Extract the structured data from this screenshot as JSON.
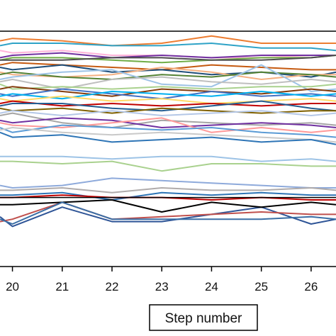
{
  "chart_data": {
    "type": "line",
    "title": "",
    "xlabel": "Step number",
    "ylabel": "",
    "x": [
      19.75,
      20,
      21,
      22,
      23,
      24,
      25,
      26,
      26.5
    ],
    "xlim": [
      19.75,
      26.5
    ],
    "ylim": [
      0,
      100
    ],
    "x_ticks": [
      "20",
      "21",
      "22",
      "23",
      "24",
      "25",
      "26"
    ],
    "x_tick_values": [
      20,
      21,
      22,
      23,
      24,
      25,
      26
    ],
    "reference_lines": [
      90,
      21
    ],
    "grid": false,
    "legend": "none",
    "series": [
      {
        "color": "#ed7d31",
        "values": [
          86,
          87,
          86,
          84,
          85,
          88,
          85,
          85,
          85
        ]
      },
      {
        "color": "#2fa3c7",
        "values": [
          84,
          85,
          85,
          84,
          84,
          85,
          83,
          83,
          82
        ]
      },
      {
        "color": "#ffb3d9",
        "values": [
          82,
          81,
          82,
          80,
          80,
          79,
          79,
          80,
          80
        ]
      },
      {
        "color": "#7030a0",
        "values": [
          79,
          80,
          81,
          79,
          80,
          79,
          80,
          80,
          80
        ]
      },
      {
        "color": "#70ad47",
        "values": [
          78,
          79,
          79,
          78,
          77,
          78,
          79,
          79,
          80
        ]
      },
      {
        "color": "#4d4d4d",
        "values": [
          78,
          78,
          78,
          79,
          79,
          78,
          78,
          79,
          80
        ]
      },
      {
        "color": "#c55a11",
        "values": [
          76,
          77,
          76,
          75,
          74,
          76,
          75,
          74,
          74
        ]
      },
      {
        "color": "#1f4e79",
        "values": [
          75,
          74,
          76,
          73,
          74,
          72,
          73,
          71,
          73
        ]
      },
      {
        "color": "#f4b183",
        "values": [
          73,
          72,
          71,
          72,
          75,
          73,
          70,
          72,
          72
        ]
      },
      {
        "color": "#548235",
        "values": [
          72,
          73,
          71,
          70,
          72,
          71,
          73,
          72,
          71
        ]
      },
      {
        "color": "#9dc3e6",
        "values": [
          70,
          71,
          73,
          74,
          68,
          67,
          76,
          65,
          66
        ]
      },
      {
        "color": "#bfbfbf",
        "values": [
          69,
          70,
          66,
          70,
          71,
          69,
          68,
          70,
          69
        ]
      },
      {
        "color": "#a9d18e",
        "values": [
          68,
          66,
          67,
          66,
          67,
          66,
          67,
          67,
          68
        ]
      },
      {
        "color": "#843c0c",
        "values": [
          66,
          67,
          65,
          63,
          66,
          65,
          64,
          66,
          65
        ]
      },
      {
        "color": "#4472c4",
        "values": [
          64,
          63,
          66,
          64,
          62,
          65,
          63,
          64,
          63
        ]
      },
      {
        "color": "#00b0f0",
        "values": [
          63,
          64,
          62,
          65,
          64,
          63,
          65,
          63,
          64
        ]
      },
      {
        "color": "#ffd966",
        "values": [
          62,
          61,
          63,
          61,
          62,
          60,
          61,
          62,
          61
        ]
      },
      {
        "color": "#c00000",
        "values": [
          60,
          61,
          59,
          60,
          59,
          60,
          59,
          60,
          60
        ]
      },
      {
        "color": "#255e91",
        "values": [
          59,
          60,
          60,
          58,
          57,
          59,
          61,
          58,
          57
        ]
      },
      {
        "color": "#7f6000",
        "values": [
          58,
          57,
          58,
          56,
          58,
          57,
          56,
          57,
          57
        ]
      },
      {
        "color": "#b4c7e7",
        "values": [
          56,
          57,
          55,
          57,
          55,
          56,
          57,
          55,
          56
        ]
      },
      {
        "color": "#a5a5a5",
        "values": [
          55,
          56,
          52,
          50,
          53,
          52,
          51,
          52,
          51
        ]
      },
      {
        "color": "#7030a0",
        "values": [
          53,
          52,
          54,
          53,
          50,
          51,
          52,
          51,
          50
        ]
      },
      {
        "color": "#ff9999",
        "values": [
          52,
          51,
          50,
          52,
          54,
          48,
          50,
          48,
          49
        ]
      },
      {
        "color": "#5b9bd5",
        "values": [
          50,
          48,
          51,
          50,
          49,
          50,
          48,
          47,
          46
        ]
      },
      {
        "color": "#c9c9c9",
        "values": [
          49,
          50,
          48,
          47,
          48,
          47,
          46,
          45,
          44
        ]
      },
      {
        "color": "#2e75b6",
        "values": [
          48,
          46,
          47,
          44,
          45,
          46,
          44,
          45,
          43
        ]
      },
      {
        "color": "#9dc3e6",
        "values": [
          38,
          38,
          38,
          37,
          38,
          38,
          36,
          37,
          36
        ]
      },
      {
        "color": "#a9d18e",
        "values": [
          36,
          36,
          35,
          36,
          32,
          35,
          35,
          34,
          34
        ]
      },
      {
        "color": "#8eaadb",
        "values": [
          26,
          25,
          26,
          29,
          28,
          27,
          26,
          25,
          25
        ]
      },
      {
        "color": "#afabab",
        "values": [
          24,
          24,
          25,
          23,
          25,
          24,
          24,
          25,
          24
        ]
      },
      {
        "color": "#2e75b6",
        "values": [
          22,
          22,
          23,
          20,
          23,
          22,
          23,
          22,
          22
        ]
      },
      {
        "color": "#c00000",
        "values": [
          21,
          21,
          22,
          21,
          21,
          20,
          21,
          20,
          20
        ]
      },
      {
        "color": "#2f5597",
        "values": [
          13,
          9,
          17,
          11,
          11,
          14,
          17,
          10,
          12
        ]
      },
      {
        "color": "#c0504d",
        "values": [
          11,
          12,
          19,
          12,
          13,
          14,
          15,
          14,
          14
        ]
      },
      {
        "color": "#000000",
        "values": [
          18,
          18,
          19,
          20,
          15,
          19,
          17,
          19,
          18
        ]
      },
      {
        "color": "#3a6ea5",
        "values": [
          12,
          10,
          19,
          12,
          12,
          12,
          12,
          13,
          12
        ]
      }
    ]
  }
}
